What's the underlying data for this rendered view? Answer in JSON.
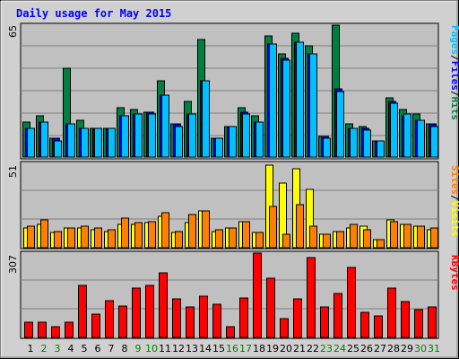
{
  "chart_data": {
    "type": "bar",
    "title": "Daily usage for May 2015",
    "categories": [
      "1",
      "2",
      "3",
      "4",
      "5",
      "6",
      "7",
      "8",
      "9",
      "10",
      "11",
      "12",
      "13",
      "14",
      "15",
      "16",
      "17",
      "18",
      "19",
      "20",
      "21",
      "22",
      "23",
      "24",
      "25",
      "26",
      "27",
      "28",
      "29",
      "30",
      "31"
    ],
    "weekend_days": [
      "2",
      "3",
      "9",
      "10",
      "16",
      "17",
      "23",
      "24",
      "30",
      "31"
    ],
    "colors": {
      "title": "#0000ff",
      "hits": "#008040",
      "files": "#0000ff",
      "pages": "#00c0ff",
      "visits": "#ffff00",
      "sites": "#ff8000",
      "kbytes": "#ff0000",
      "weekday_label": "#000000",
      "weekend_label": "#008000",
      "panel_bg": "#c0c0c0",
      "frame_bg": "#d0d0d0"
    },
    "panels": [
      {
        "name": "hits_files_pages",
        "ymax_label": "65",
        "ymax": 65,
        "legend": [
          {
            "text": "Pages",
            "color": "#00c0ff"
          },
          {
            "text": "/",
            "color": "#000000"
          },
          {
            "text": "Files",
            "color": "#0000ff"
          },
          {
            "text": "/",
            "color": "#000000"
          },
          {
            "text": "Hits",
            "color": "#008040"
          }
        ],
        "series": [
          {
            "name": "Hits",
            "values": [
              17,
              20,
              9,
              43,
              18,
              14,
              14,
              24,
              23,
              22,
              37,
              16,
              27,
              57,
              9,
              15,
              24,
              20,
              59,
              50,
              60,
              54,
              10,
              64,
              16,
              15,
              8,
              29,
              23,
              21,
              16
            ]
          },
          {
            "name": "Files",
            "values": [
              14,
              17,
              9,
              16,
              14,
              14,
              14,
              20,
              21,
              22,
              30,
              16,
              21,
              37,
              9,
              15,
              22,
              17,
              55,
              48,
              56,
              50,
              10,
              33,
              14,
              14,
              8,
              27,
              20,
              18,
              16
            ]
          },
          {
            "name": "Pages",
            "values": [
              14,
              17,
              8,
              16,
              14,
              14,
              14,
              20,
              21,
              21,
              30,
              15,
              21,
              37,
              9,
              15,
              21,
              17,
              55,
              47,
              56,
              50,
              9,
              32,
              14,
              13,
              8,
              26,
              21,
              18,
              15
            ]
          }
        ]
      },
      {
        "name": "visits_sites",
        "ymax_label": "51",
        "ymax": 51,
        "legend": [
          {
            "text": "Sites",
            "color": "#ff8000"
          },
          {
            "text": "/",
            "color": "#000000"
          },
          {
            "text": "Visits",
            "color": "#ffff00"
          }
        ],
        "series": [
          {
            "name": "Visits",
            "values": [
              12,
              14,
              9,
              12,
              12,
              11,
              10,
              14,
              14,
              15,
              19,
              9,
              15,
              22,
              10,
              12,
              16,
              9,
              50,
              39,
              48,
              35,
              8,
              10,
              12,
              13,
              5,
              17,
              14,
              13,
              11
            ]
          },
          {
            "name": "Sites",
            "values": [
              13,
              17,
              10,
              12,
              13,
              12,
              11,
              18,
              15,
              16,
              21,
              10,
              20,
              22,
              11,
              12,
              16,
              9,
              25,
              8,
              26,
              13,
              8,
              10,
              14,
              11,
              5,
              16,
              14,
              13,
              12
            ]
          }
        ]
      },
      {
        "name": "kbytes",
        "ymax_label": "307",
        "ymax": 307,
        "legend": [
          {
            "text": "KBytes",
            "color": "#ff0000"
          }
        ],
        "series": [
          {
            "name": "KBytes",
            "values": [
              55,
              55,
              40,
              55,
              190,
              85,
              135,
              115,
              180,
              190,
              235,
              140,
              110,
              150,
              120,
              40,
              145,
              307,
              215,
              70,
              140,
              290,
              110,
              160,
              255,
              90,
              80,
              180,
              130,
              100,
              110
            ]
          }
        ]
      }
    ]
  }
}
